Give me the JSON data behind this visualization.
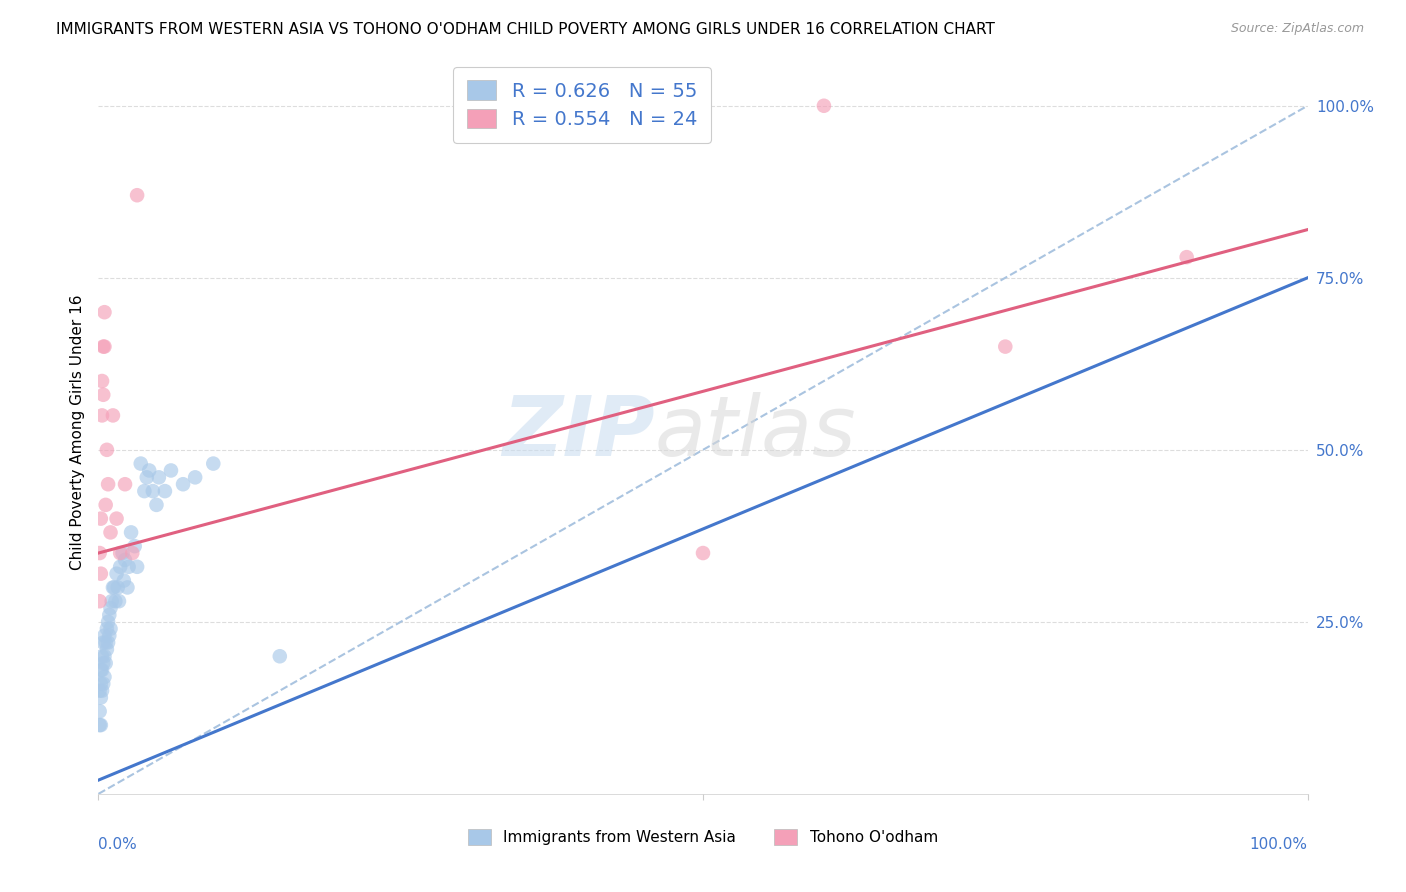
{
  "title": "IMMIGRANTS FROM WESTERN ASIA VS TOHONO O'ODHAM CHILD POVERTY AMONG GIRLS UNDER 16 CORRELATION CHART",
  "source": "Source: ZipAtlas.com",
  "ylabel": "Child Poverty Among Girls Under 16",
  "blue_R": 0.626,
  "blue_N": 55,
  "pink_R": 0.554,
  "pink_N": 24,
  "blue_color": "#a8c8e8",
  "pink_color": "#f4a0b8",
  "blue_line_color": "#4477cc",
  "pink_line_color": "#e06080",
  "dashed_line_color": "#aac4e0",
  "legend_blue_label": "Immigrants from Western Asia",
  "legend_pink_label": "Tohono O'odham",
  "ytick_labels": [
    "100.0%",
    "75.0%",
    "50.0%",
    "25.0%"
  ],
  "ytick_values": [
    1.0,
    0.75,
    0.5,
    0.25
  ],
  "blue_scatter_x": [
    0.001,
    0.001,
    0.001,
    0.002,
    0.002,
    0.002,
    0.002,
    0.003,
    0.003,
    0.003,
    0.004,
    0.004,
    0.004,
    0.005,
    0.005,
    0.005,
    0.006,
    0.006,
    0.007,
    0.007,
    0.008,
    0.008,
    0.009,
    0.009,
    0.01,
    0.01,
    0.011,
    0.012,
    0.013,
    0.014,
    0.015,
    0.016,
    0.017,
    0.018,
    0.02,
    0.021,
    0.022,
    0.024,
    0.025,
    0.027,
    0.03,
    0.032,
    0.035,
    0.038,
    0.04,
    0.042,
    0.045,
    0.048,
    0.05,
    0.055,
    0.06,
    0.07,
    0.08,
    0.095,
    0.15
  ],
  "blue_scatter_y": [
    0.15,
    0.12,
    0.1,
    0.18,
    0.16,
    0.14,
    0.1,
    0.2,
    0.18,
    0.15,
    0.22,
    0.19,
    0.16,
    0.23,
    0.2,
    0.17,
    0.22,
    0.19,
    0.24,
    0.21,
    0.25,
    0.22,
    0.26,
    0.23,
    0.27,
    0.24,
    0.28,
    0.3,
    0.3,
    0.28,
    0.32,
    0.3,
    0.28,
    0.33,
    0.35,
    0.31,
    0.34,
    0.3,
    0.33,
    0.38,
    0.36,
    0.33,
    0.48,
    0.44,
    0.46,
    0.47,
    0.44,
    0.42,
    0.46,
    0.44,
    0.47,
    0.45,
    0.46,
    0.48,
    0.2
  ],
  "pink_scatter_x": [
    0.001,
    0.001,
    0.002,
    0.002,
    0.003,
    0.003,
    0.004,
    0.004,
    0.005,
    0.005,
    0.006,
    0.007,
    0.008,
    0.01,
    0.012,
    0.015,
    0.018,
    0.022,
    0.028,
    0.032,
    0.5,
    0.6,
    0.75,
    0.9
  ],
  "pink_scatter_y": [
    0.35,
    0.28,
    0.4,
    0.32,
    0.6,
    0.55,
    0.65,
    0.58,
    0.7,
    0.65,
    0.42,
    0.5,
    0.45,
    0.38,
    0.55,
    0.4,
    0.35,
    0.45,
    0.35,
    0.87,
    0.35,
    1.0,
    0.65,
    0.78
  ],
  "blue_line_x0": 0.0,
  "blue_line_x1": 1.0,
  "blue_line_y0": 0.02,
  "blue_line_y1": 0.75,
  "pink_line_x0": 0.0,
  "pink_line_x1": 1.0,
  "pink_line_y0": 0.35,
  "pink_line_y1": 0.82,
  "dashed_line_x0": 0.0,
  "dashed_line_x1": 1.0,
  "dashed_line_y0": 0.0,
  "dashed_line_y1": 1.0,
  "xlim": [
    0.0,
    1.0
  ],
  "ylim": [
    0.0,
    1.05
  ],
  "background_color": "#ffffff",
  "grid_color": "#dddddd",
  "title_fontsize": 11,
  "axis_label_color": "#4477cc",
  "source_color": "#999999"
}
